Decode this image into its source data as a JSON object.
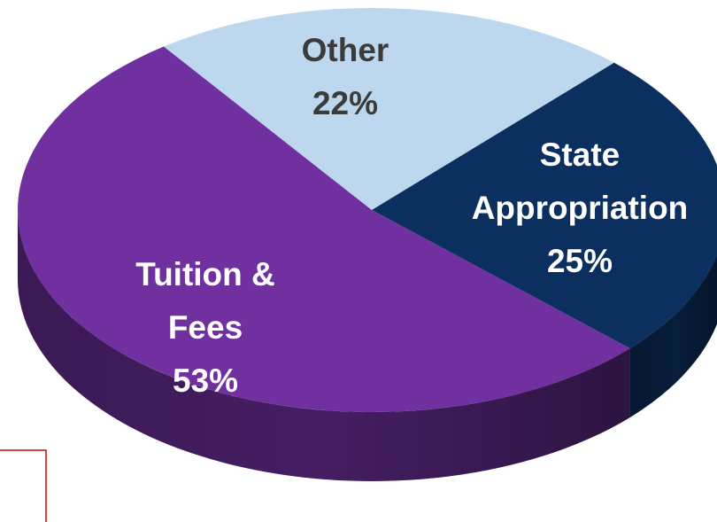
{
  "chart_data": {
    "type": "pie",
    "categories": [
      "Other",
      "State Appropriation",
      "Tuition & Fees"
    ],
    "values": [
      22,
      25,
      53
    ],
    "value_labels": [
      "22%",
      "25%",
      "53%"
    ],
    "colors": [
      "#bdd7ee",
      "#0b2f5f",
      "#7030a0"
    ],
    "label_colors": [
      "#3b3b3b",
      "#ffffff",
      "#ffffff"
    ]
  }
}
